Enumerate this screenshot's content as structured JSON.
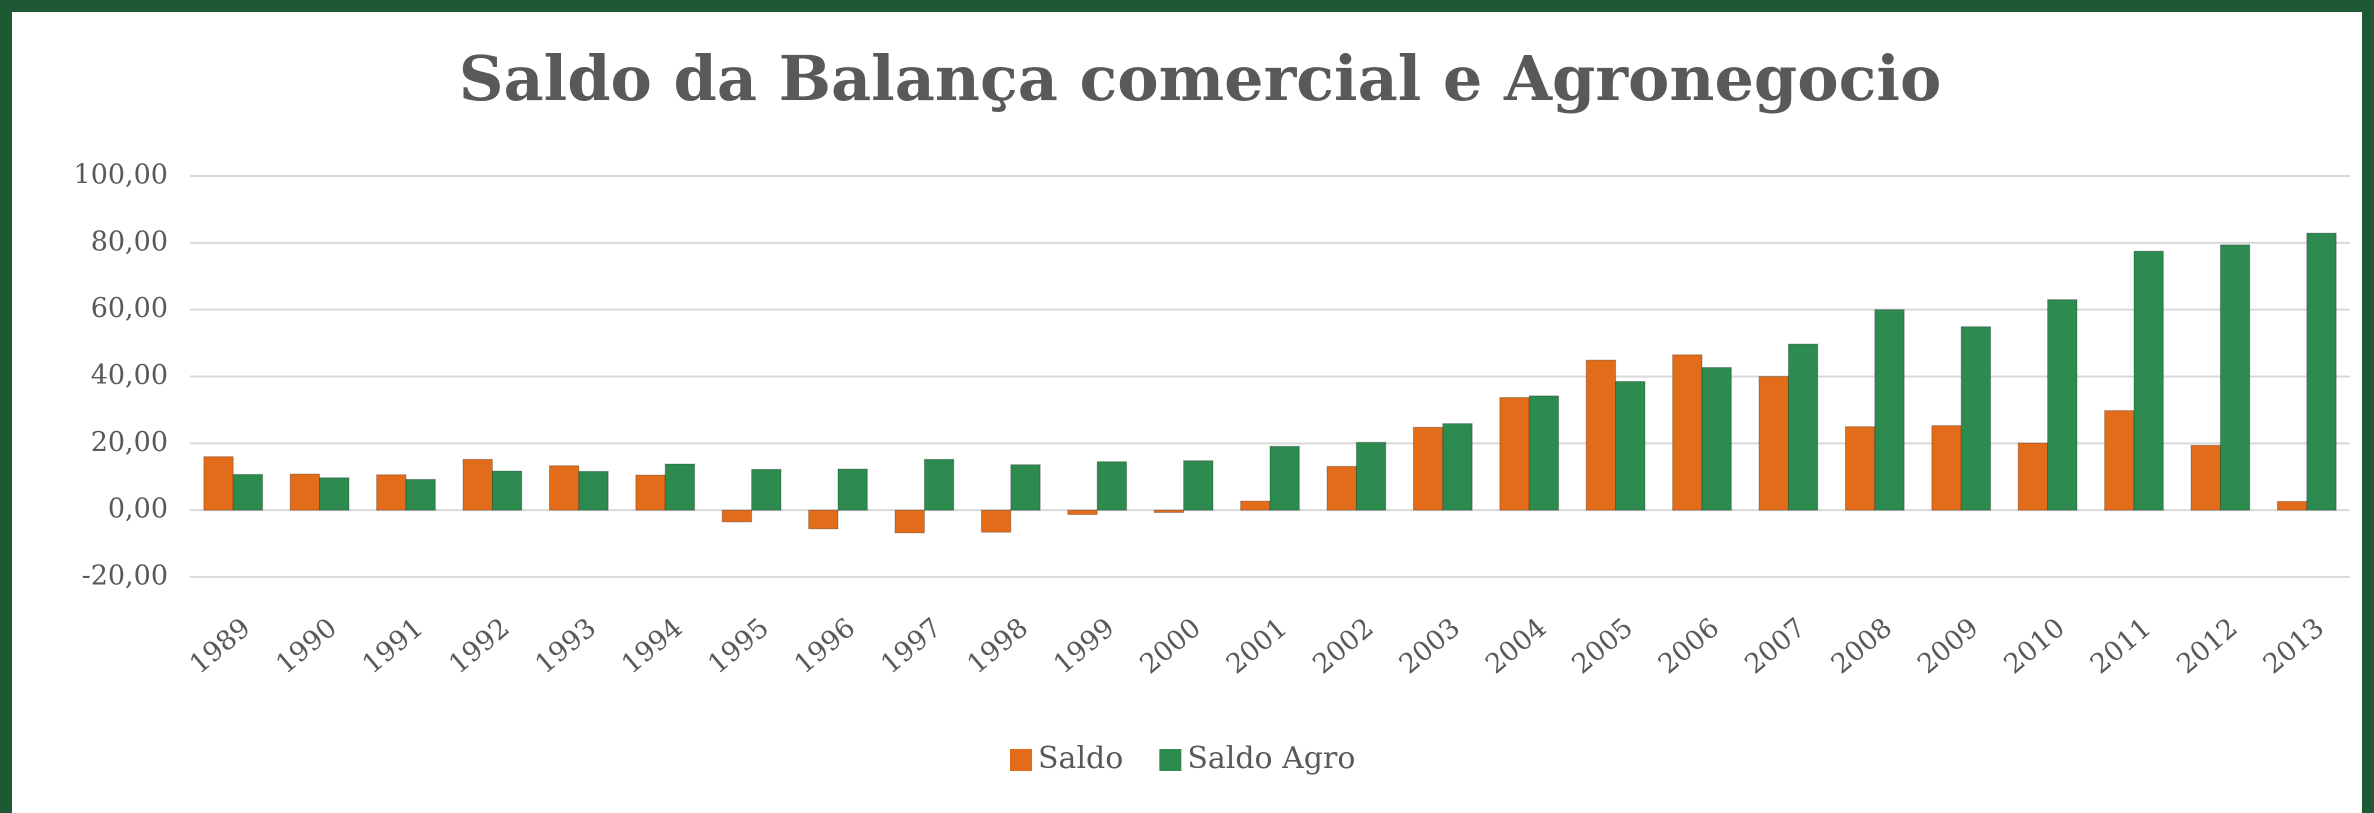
{
  "chart_data": {
    "type": "bar",
    "title": "Saldo da Balança comercial e Agronegocio",
    "categories": [
      "1989",
      "1990",
      "1991",
      "1992",
      "1993",
      "1994",
      "1995",
      "1996",
      "1997",
      "1998",
      "1999",
      "2000",
      "2001",
      "2002",
      "2003",
      "2004",
      "2005",
      "2006",
      "2007",
      "2008",
      "2009",
      "2010",
      "2011",
      "2012",
      "2013"
    ],
    "series": [
      {
        "name": "Saldo",
        "color": "#e36c1a",
        "values": [
          16,
          10.8,
          10.6,
          15.2,
          13.3,
          10.5,
          -3.5,
          -5.6,
          -6.8,
          -6.6,
          -1.3,
          -0.7,
          2.7,
          13.1,
          24.8,
          33.7,
          44.9,
          46.5,
          40.0,
          25.0,
          25.3,
          20.1,
          29.8,
          19.4,
          2.6
        ]
      },
      {
        "name": "Saldo Agro",
        "color": "#2e8b50",
        "values": [
          10.7,
          9.7,
          9.2,
          11.7,
          11.6,
          13.8,
          12.2,
          12.3,
          15.2,
          13.6,
          14.5,
          14.8,
          19.1,
          20.3,
          25.9,
          34.2,
          38.5,
          42.7,
          49.7,
          60.0,
          54.9,
          63.0,
          77.5,
          79.4,
          82.9
        ]
      }
    ],
    "ylim": [
      -20,
      100
    ],
    "yticks": [
      {
        "value": -20,
        "label": "-20,00"
      },
      {
        "value": 0,
        "label": "0,00"
      },
      {
        "value": 20,
        "label": "20,00"
      },
      {
        "value": 40,
        "label": "40,00"
      },
      {
        "value": 60,
        "label": "60,00"
      },
      {
        "value": 80,
        "label": "80,00"
      },
      {
        "value": 100,
        "label": "100,00"
      }
    ],
    "grid": true,
    "legend": "bottom"
  }
}
